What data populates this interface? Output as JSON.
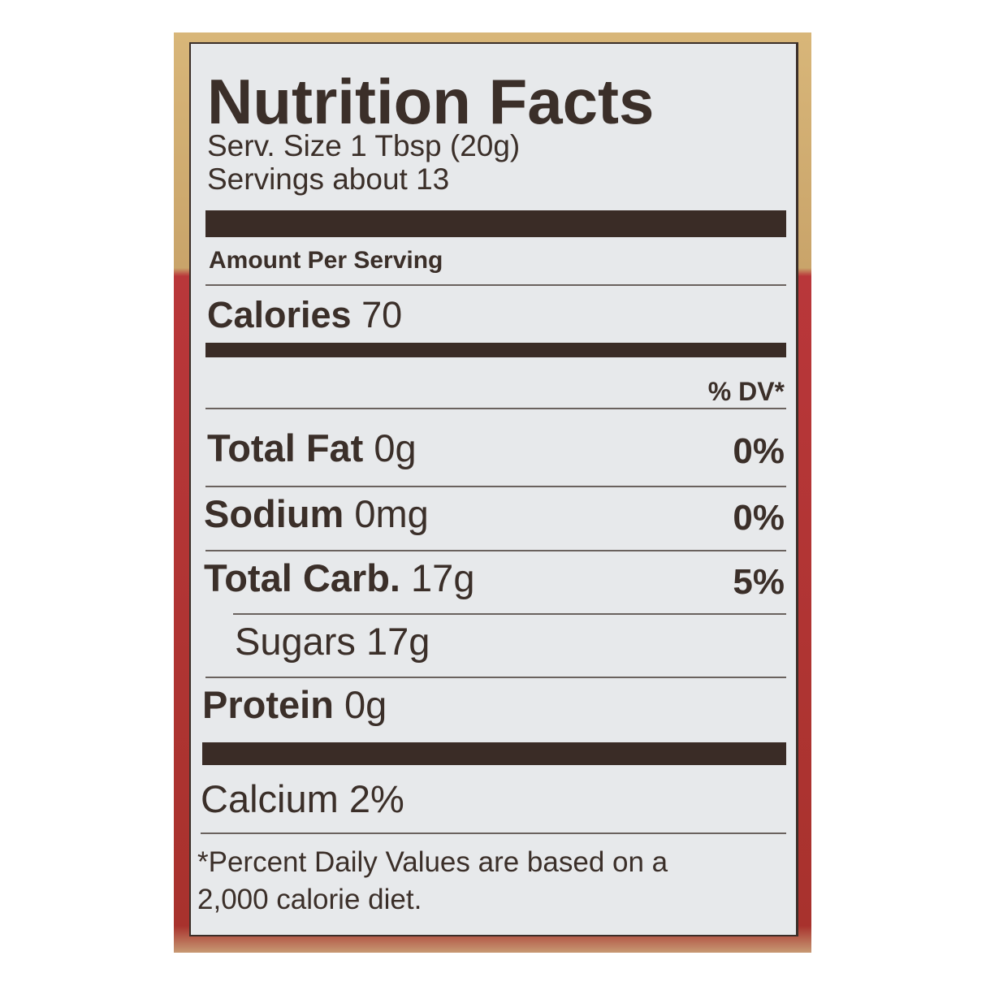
{
  "colors": {
    "label_bg": "#e7e9eb",
    "ink": "#3b2f29",
    "package_top": "#c9a46a",
    "package_bottom": "#a8322d"
  },
  "title": "Nutrition Facts",
  "serving_size": "Serv. Size 1 Tbsp (20g)",
  "servings": "Servings about 13",
  "amount_per_serving": "Amount Per Serving",
  "calories": {
    "label": "Calories",
    "value": "70"
  },
  "dv_header": "% DV*",
  "nutrients": [
    {
      "label": "Total Fat",
      "amount": "0g",
      "dv": "0%"
    },
    {
      "label": "Sodium",
      "amount": "0mg",
      "dv": "0%"
    },
    {
      "label": "Total Carb.",
      "amount": "17g",
      "dv": "5%"
    },
    {
      "label": "Sugars",
      "amount": "17g",
      "dv": ""
    },
    {
      "label": "Protein",
      "amount": "0g",
      "dv": ""
    }
  ],
  "calcium": "Calcium 2%",
  "footnote": [
    "*Percent Daily Values are based on a",
    "2,000 calorie diet."
  ]
}
